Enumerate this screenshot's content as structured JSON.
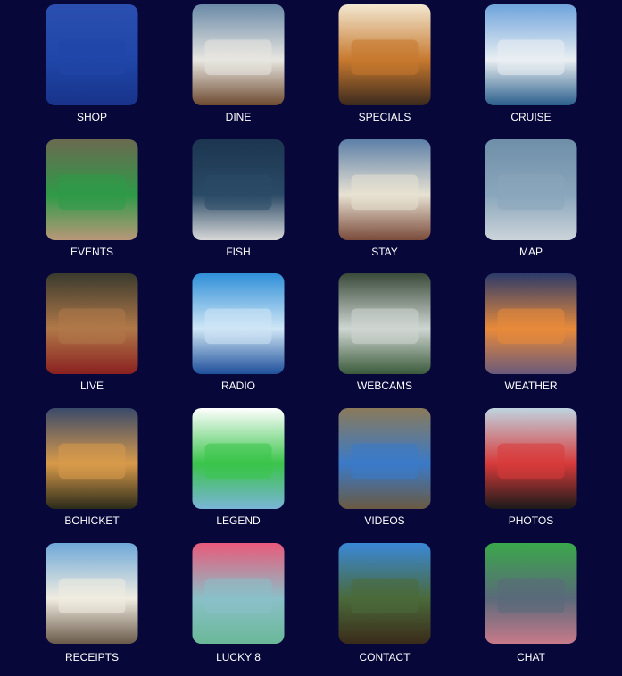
{
  "menu": {
    "items": [
      {
        "label": "SHOP"
      },
      {
        "label": "DINE"
      },
      {
        "label": "SPECIALS"
      },
      {
        "label": "CRUISE"
      },
      {
        "label": "EVENTS"
      },
      {
        "label": "FISH"
      },
      {
        "label": "STAY"
      },
      {
        "label": "MAP"
      },
      {
        "label": "LIVE"
      },
      {
        "label": "RADIO"
      },
      {
        "label": "WEBCAMS"
      },
      {
        "label": "WEATHER"
      },
      {
        "label": "BOHICKET"
      },
      {
        "label": "LEGEND"
      },
      {
        "label": "VIDEOS"
      },
      {
        "label": "PHOTOS"
      },
      {
        "label": "RECEIPTS"
      },
      {
        "label": "LUCKY 8"
      },
      {
        "label": "CONTACT"
      },
      {
        "label": "CHAT"
      }
    ]
  }
}
